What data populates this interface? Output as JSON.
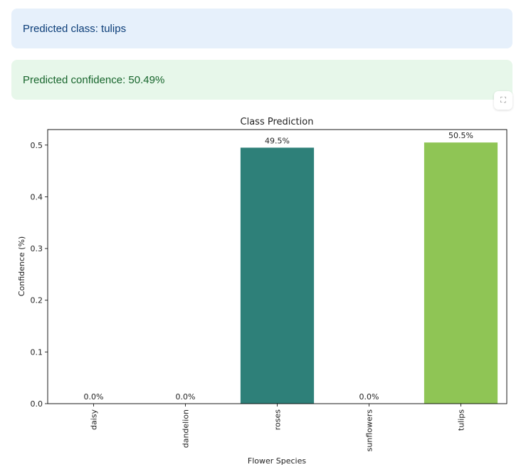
{
  "alerts": {
    "class_text": "Predicted class: tulips",
    "confidence_text": "Predicted confidence: 50.49%"
  },
  "fullscreen": {
    "icon": "fullscreen-icon",
    "glyph": "⛶"
  },
  "chart_data": {
    "type": "bar",
    "title": "Class Prediction",
    "xlabel": "Flower Species",
    "ylabel": "Confidence (%)",
    "categories": [
      "daisy",
      "dandelion",
      "roses",
      "sunflowers",
      "tulips"
    ],
    "values": [
      0.0,
      0.0,
      0.495,
      0.0,
      0.505
    ],
    "bar_labels": [
      "0.0%",
      "0.0%",
      "49.5%",
      "0.0%",
      "50.5%"
    ],
    "colors": [
      "#440154",
      "#3b528b",
      "#2e8079",
      "#5ec962",
      "#8fc555"
    ],
    "ylim": [
      0,
      0.53
    ],
    "yticks": [
      0.0,
      0.1,
      0.2,
      0.3,
      0.4,
      0.5
    ],
    "ytick_labels": [
      "0.0",
      "0.1",
      "0.2",
      "0.3",
      "0.4",
      "0.5"
    ],
    "grid": false,
    "legend": "none"
  }
}
